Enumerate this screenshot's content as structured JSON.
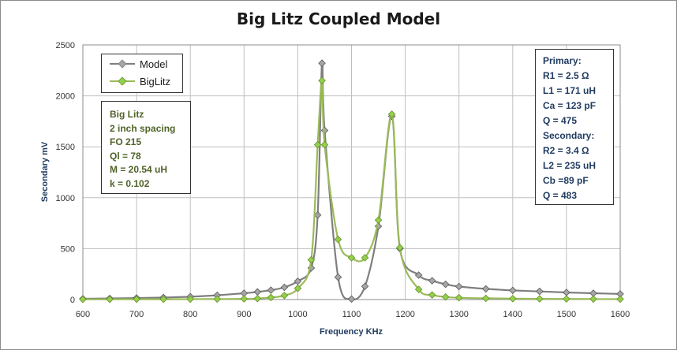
{
  "chart_data": {
    "type": "line",
    "title": "Big Litz Coupled Model",
    "xlabel": "Frequency  KHz",
    "ylabel": "Secondary  mV",
    "xlim": [
      600,
      1600
    ],
    "ylim": [
      0,
      2500
    ],
    "x_ticks": [
      "600",
      "700",
      "800",
      "900",
      "1000",
      "1100",
      "1200",
      "1300",
      "1400",
      "1500",
      "1600"
    ],
    "y_ticks": [
      "0",
      "500",
      "1000",
      "1500",
      "2000",
      "2500"
    ],
    "grid": true,
    "legend_position": "top-left",
    "series": [
      {
        "name": "Model",
        "color": "#7f7f7f",
        "marker_color": "#a6a6a6",
        "x": [
          600,
          650,
          700,
          750,
          800,
          850,
          900,
          925,
          950,
          975,
          1000,
          1025,
          1037,
          1045,
          1050,
          1075,
          1100,
          1125,
          1150,
          1175,
          1190,
          1225,
          1250,
          1275,
          1300,
          1350,
          1400,
          1450,
          1500,
          1550,
          1600
        ],
        "y": [
          8,
          11,
          15,
          20,
          28,
          42,
          62,
          75,
          92,
          120,
          180,
          310,
          830,
          2320,
          1660,
          220,
          5,
          130,
          720,
          1800,
          500,
          240,
          185,
          150,
          128,
          105,
          90,
          80,
          70,
          62,
          55
        ]
      },
      {
        "name": "BigLitz",
        "color": "#9bbb59",
        "marker_color": "#92d050",
        "x": [
          600,
          650,
          700,
          750,
          800,
          850,
          900,
          925,
          950,
          975,
          1000,
          1025,
          1037,
          1045,
          1050,
          1075,
          1100,
          1125,
          1150,
          1175,
          1190,
          1225,
          1250,
          1275,
          1300,
          1350,
          1400,
          1450,
          1500,
          1550,
          1600
        ],
        "y": [
          2,
          2,
          3,
          3,
          4,
          5,
          7,
          10,
          20,
          40,
          110,
          390,
          1520,
          2150,
          1520,
          590,
          410,
          410,
          780,
          1820,
          510,
          100,
          45,
          25,
          18,
          12,
          9,
          7,
          6,
          5,
          4
        ]
      }
    ]
  },
  "legend": {
    "model_label": "Model",
    "biglitz_label": "BigLitz"
  },
  "info_left": {
    "lines": [
      "Big Litz",
      "2 inch spacing",
      "FO 215",
      "Ql = 78",
      "M = 20.54  uH",
      "k = 0.102"
    ]
  },
  "info_right": {
    "lines": [
      "Primary:",
      "R1 = 2.5 Ω",
      "L1 = 171 uH",
      "Ca = 123  pF",
      "Q = 475",
      "Secondary:",
      "R2 = 3.4 Ω",
      "L2 = 235 uH",
      "Cb =89 pF",
      "Q = 483"
    ]
  },
  "colors": {
    "grid": "#bfbfbf",
    "axis": "#8c8c8c",
    "model": "#7f7f7f",
    "biglitz": "#9bbb59"
  }
}
